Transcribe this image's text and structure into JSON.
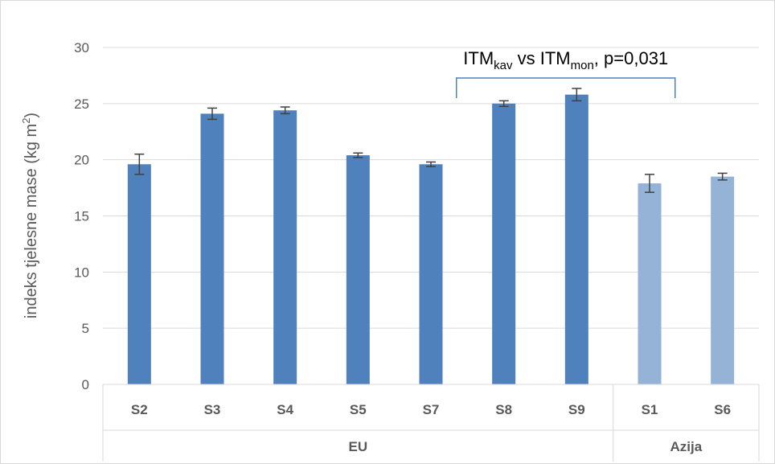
{
  "chart_data": {
    "type": "bar",
    "title": "",
    "xlabel": "",
    "ylabel": "indeks tjelesne mase (kg m",
    "ylabel_sup": "2",
    "ylabel_close": ")",
    "ylim": [
      0,
      30
    ],
    "yticks": [
      0,
      5,
      10,
      15,
      20,
      25,
      30
    ],
    "grid": true,
    "categories": [
      "S2",
      "S3",
      "S4",
      "S5",
      "S7",
      "S8",
      "S9",
      "S1",
      "S6"
    ],
    "values": [
      19.6,
      24.1,
      24.4,
      20.4,
      19.6,
      25.0,
      25.8,
      17.9,
      18.5
    ],
    "errors": [
      0.9,
      0.5,
      0.3,
      0.2,
      0.2,
      0.25,
      0.55,
      0.8,
      0.3
    ],
    "groups": [
      {
        "name": "EU",
        "members": [
          "S2",
          "S3",
          "S4",
          "S5",
          "S7",
          "S8",
          "S9"
        ]
      },
      {
        "name": "Azija",
        "members": [
          "S1",
          "S6"
        ]
      }
    ],
    "colors": {
      "EU": "#4F81BD",
      "Azija": "#95B3D7",
      "error": "#404040",
      "grid": "#D9D9D9",
      "axis": "#D9D9D9",
      "bracket": "#4F81BD"
    },
    "annotation": {
      "from_category": "S8",
      "to_category": "S1",
      "parts": [
        {
          "text": "ITM",
          "sub": false
        },
        {
          "text": "kav",
          "sub": true
        },
        {
          "text": " vs ITM",
          "sub": false
        },
        {
          "text": "mon",
          "sub": true
        },
        {
          "text": ", p=0,031",
          "sub": false
        }
      ]
    }
  }
}
